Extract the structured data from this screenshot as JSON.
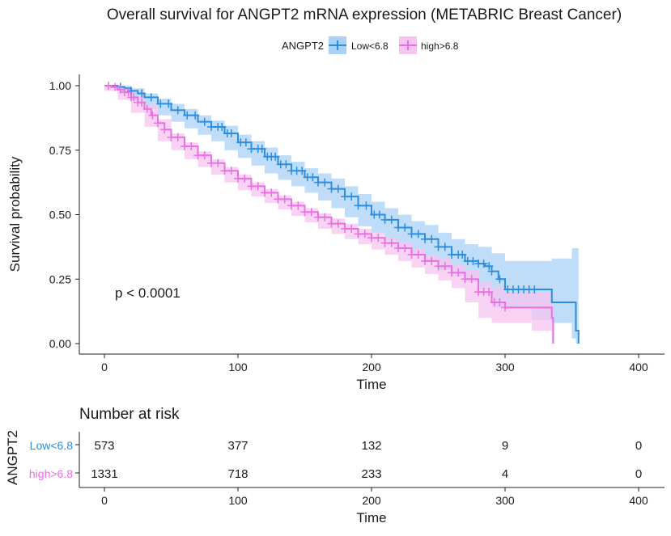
{
  "chart_data": {
    "type": "line",
    "title": "Overall survival for ANGPT2 mRNA expression (METABRIC Breast Cancer)",
    "legend": {
      "title": "ANGPT2",
      "placement": "top-center"
    },
    "xlabel": "Time",
    "ylabel": "Survival probability",
    "xlim": [
      0,
      400
    ],
    "ylim": [
      0,
      1
    ],
    "x_ticks": [
      0,
      100,
      200,
      300,
      400
    ],
    "x_tick_labels": [
      "0",
      "100",
      "200",
      "300",
      "400"
    ],
    "y_ticks": [
      0,
      0.25,
      0.5,
      0.75,
      1.0
    ],
    "y_tick_labels": [
      "0.00",
      "0.25",
      "0.50",
      "0.75",
      "1.00"
    ],
    "grid": false,
    "annotation": "p < 0.0001",
    "series": [
      {
        "name": "Low<6.8",
        "color": "#2b8ee0",
        "band_color": "#a9d0f5",
        "points": [
          [
            0,
            1.0
          ],
          [
            5,
            1.0
          ],
          [
            10,
            0.995
          ],
          [
            15,
            0.99
          ],
          [
            20,
            0.98
          ],
          [
            25,
            0.97
          ],
          [
            30,
            0.955
          ],
          [
            40,
            0.93
          ],
          [
            50,
            0.905
          ],
          [
            60,
            0.885
          ],
          [
            70,
            0.86
          ],
          [
            80,
            0.84
          ],
          [
            90,
            0.815
          ],
          [
            100,
            0.78
          ],
          [
            110,
            0.755
          ],
          [
            120,
            0.725
          ],
          [
            130,
            0.695
          ],
          [
            140,
            0.67
          ],
          [
            150,
            0.645
          ],
          [
            160,
            0.625
          ],
          [
            170,
            0.6
          ],
          [
            180,
            0.57
          ],
          [
            190,
            0.535
          ],
          [
            200,
            0.5
          ],
          [
            210,
            0.48
          ],
          [
            220,
            0.45
          ],
          [
            230,
            0.425
          ],
          [
            240,
            0.405
          ],
          [
            250,
            0.375
          ],
          [
            260,
            0.345
          ],
          [
            270,
            0.32
          ],
          [
            280,
            0.31
          ],
          [
            285,
            0.3
          ],
          [
            290,
            0.28
          ],
          [
            295,
            0.25
          ],
          [
            300,
            0.21
          ],
          [
            310,
            0.21
          ],
          [
            320,
            0.21
          ],
          [
            330,
            0.21
          ],
          [
            335,
            0.16
          ],
          [
            345,
            0.16
          ],
          [
            350,
            0.16
          ],
          [
            353,
            0.05
          ],
          [
            355,
            0.0
          ]
        ],
        "lower": [
          [
            0,
            1.0
          ],
          [
            10,
            0.99
          ],
          [
            20,
            0.97
          ],
          [
            30,
            0.94
          ],
          [
            40,
            0.91
          ],
          [
            50,
            0.885
          ],
          [
            60,
            0.86
          ],
          [
            70,
            0.835
          ],
          [
            80,
            0.81
          ],
          [
            90,
            0.785
          ],
          [
            100,
            0.75
          ],
          [
            110,
            0.72
          ],
          [
            120,
            0.69
          ],
          [
            130,
            0.66
          ],
          [
            140,
            0.635
          ],
          [
            150,
            0.61
          ],
          [
            160,
            0.585
          ],
          [
            170,
            0.555
          ],
          [
            180,
            0.525
          ],
          [
            190,
            0.49
          ],
          [
            200,
            0.455
          ],
          [
            210,
            0.43
          ],
          [
            220,
            0.4
          ],
          [
            230,
            0.375
          ],
          [
            240,
            0.35
          ],
          [
            250,
            0.32
          ],
          [
            260,
            0.285
          ],
          [
            270,
            0.26
          ],
          [
            280,
            0.245
          ],
          [
            290,
            0.21
          ],
          [
            300,
            0.14
          ],
          [
            320,
            0.14
          ],
          [
            335,
            0.09
          ],
          [
            350,
            0.08
          ],
          [
            353,
            0.02
          ],
          [
            355,
            0.0
          ]
        ],
        "upper": [
          [
            0,
            1.0
          ],
          [
            10,
            1.0
          ],
          [
            20,
            0.99
          ],
          [
            30,
            0.97
          ],
          [
            40,
            0.95
          ],
          [
            50,
            0.93
          ],
          [
            60,
            0.91
          ],
          [
            70,
            0.885
          ],
          [
            80,
            0.865
          ],
          [
            90,
            0.845
          ],
          [
            100,
            0.81
          ],
          [
            110,
            0.785
          ],
          [
            120,
            0.76
          ],
          [
            130,
            0.73
          ],
          [
            140,
            0.705
          ],
          [
            150,
            0.68
          ],
          [
            160,
            0.66
          ],
          [
            170,
            0.64
          ],
          [
            180,
            0.61
          ],
          [
            190,
            0.58
          ],
          [
            200,
            0.55
          ],
          [
            210,
            0.525
          ],
          [
            220,
            0.5
          ],
          [
            230,
            0.475
          ],
          [
            240,
            0.46
          ],
          [
            250,
            0.43
          ],
          [
            260,
            0.405
          ],
          [
            270,
            0.385
          ],
          [
            280,
            0.375
          ],
          [
            290,
            0.35
          ],
          [
            300,
            0.32
          ],
          [
            320,
            0.32
          ],
          [
            335,
            0.33
          ],
          [
            350,
            0.37
          ],
          [
            353,
            0.37
          ],
          [
            355,
            0.37
          ]
        ]
      },
      {
        "name": "high>6.8",
        "color": "#e870e0",
        "band_color": "#f5c4f0",
        "points": [
          [
            0,
            1.0
          ],
          [
            5,
            0.995
          ],
          [
            10,
            0.985
          ],
          [
            15,
            0.975
          ],
          [
            20,
            0.955
          ],
          [
            25,
            0.935
          ],
          [
            30,
            0.91
          ],
          [
            35,
            0.885
          ],
          [
            40,
            0.855
          ],
          [
            45,
            0.83
          ],
          [
            50,
            0.8
          ],
          [
            60,
            0.765
          ],
          [
            70,
            0.73
          ],
          [
            80,
            0.7
          ],
          [
            90,
            0.67
          ],
          [
            100,
            0.64
          ],
          [
            110,
            0.61
          ],
          [
            120,
            0.585
          ],
          [
            130,
            0.56
          ],
          [
            140,
            0.535
          ],
          [
            150,
            0.51
          ],
          [
            160,
            0.49
          ],
          [
            170,
            0.465
          ],
          [
            180,
            0.445
          ],
          [
            190,
            0.425
          ],
          [
            200,
            0.41
          ],
          [
            210,
            0.39
          ],
          [
            220,
            0.37
          ],
          [
            230,
            0.345
          ],
          [
            240,
            0.32
          ],
          [
            250,
            0.3
          ],
          [
            260,
            0.275
          ],
          [
            270,
            0.25
          ],
          [
            280,
            0.2
          ],
          [
            290,
            0.16
          ],
          [
            300,
            0.14
          ],
          [
            310,
            0.14
          ],
          [
            320,
            0.14
          ],
          [
            330,
            0.14
          ],
          [
            335,
            0.1
          ],
          [
            336,
            0.0
          ]
        ],
        "lower": [
          [
            0,
            1.0
          ],
          [
            10,
            0.98
          ],
          [
            20,
            0.945
          ],
          [
            30,
            0.895
          ],
          [
            40,
            0.84
          ],
          [
            50,
            0.785
          ],
          [
            60,
            0.75
          ],
          [
            70,
            0.715
          ],
          [
            80,
            0.685
          ],
          [
            90,
            0.655
          ],
          [
            100,
            0.625
          ],
          [
            110,
            0.595
          ],
          [
            120,
            0.57
          ],
          [
            130,
            0.545
          ],
          [
            140,
            0.52
          ],
          [
            150,
            0.495
          ],
          [
            160,
            0.47
          ],
          [
            170,
            0.445
          ],
          [
            180,
            0.425
          ],
          [
            190,
            0.405
          ],
          [
            200,
            0.385
          ],
          [
            210,
            0.365
          ],
          [
            220,
            0.345
          ],
          [
            230,
            0.32
          ],
          [
            240,
            0.295
          ],
          [
            250,
            0.27
          ],
          [
            260,
            0.245
          ],
          [
            270,
            0.215
          ],
          [
            280,
            0.16
          ],
          [
            290,
            0.1
          ],
          [
            300,
            0.08
          ],
          [
            320,
            0.08
          ],
          [
            335,
            0.05
          ],
          [
            336,
            0.0
          ]
        ],
        "upper": [
          [
            0,
            1.0
          ],
          [
            10,
            0.99
          ],
          [
            20,
            0.965
          ],
          [
            30,
            0.925
          ],
          [
            40,
            0.87
          ],
          [
            50,
            0.815
          ],
          [
            60,
            0.78
          ],
          [
            70,
            0.745
          ],
          [
            80,
            0.715
          ],
          [
            90,
            0.685
          ],
          [
            100,
            0.655
          ],
          [
            110,
            0.625
          ],
          [
            120,
            0.6
          ],
          [
            130,
            0.575
          ],
          [
            140,
            0.55
          ],
          [
            150,
            0.525
          ],
          [
            160,
            0.505
          ],
          [
            170,
            0.485
          ],
          [
            180,
            0.465
          ],
          [
            190,
            0.445
          ],
          [
            200,
            0.43
          ],
          [
            210,
            0.41
          ],
          [
            220,
            0.395
          ],
          [
            230,
            0.37
          ],
          [
            240,
            0.345
          ],
          [
            250,
            0.33
          ],
          [
            260,
            0.305
          ],
          [
            270,
            0.285
          ],
          [
            280,
            0.24
          ],
          [
            290,
            0.22
          ],
          [
            300,
            0.2
          ],
          [
            320,
            0.2
          ],
          [
            335,
            0.18
          ],
          [
            336,
            0.18
          ]
        ]
      }
    ],
    "censor_marks": {
      "Low<6.8": [
        12,
        20,
        28,
        35,
        42,
        48,
        55,
        62,
        68,
        75,
        80,
        85,
        88,
        92,
        95,
        102,
        106,
        110,
        115,
        118,
        122,
        125,
        128,
        132,
        136,
        140,
        144,
        148,
        152,
        156,
        160,
        165,
        170,
        175,
        180,
        185,
        190,
        196,
        202,
        206,
        210,
        215,
        220,
        225,
        230,
        235,
        240,
        245,
        250,
        255,
        260,
        265,
        268,
        272,
        276,
        280,
        284,
        288,
        290,
        296,
        302,
        306,
        310,
        314,
        318,
        322
      ],
      "high>6.8": [
        3,
        8,
        12,
        15,
        18,
        20,
        22,
        25,
        28,
        32,
        36,
        40,
        45,
        50,
        55,
        60,
        65,
        70,
        75,
        80,
        85,
        90,
        95,
        100,
        105,
        110,
        115,
        120,
        125,
        130,
        135,
        140,
        145,
        150,
        155,
        160,
        165,
        170,
        175,
        180,
        185,
        190,
        195,
        200,
        205,
        210,
        215,
        220,
        225,
        230,
        235,
        240,
        245,
        250,
        255,
        260,
        265,
        270,
        275,
        280,
        284,
        288,
        292,
        296,
        300
      ]
    }
  },
  "risk_table": {
    "title": "Number at risk",
    "ylabel": "ANGPT2",
    "xlabel": "Time",
    "x_tick_labels": [
      "0",
      "100",
      "200",
      "300",
      "400"
    ],
    "rows": [
      {
        "label": "Low<6.8",
        "color": "#2b8ee0",
        "values": [
          "573",
          "377",
          "132",
          "9",
          "0"
        ]
      },
      {
        "label": "high>6.8",
        "color": "#e870e0",
        "values": [
          "1331",
          "718",
          "233",
          "4",
          "0"
        ]
      }
    ]
  }
}
